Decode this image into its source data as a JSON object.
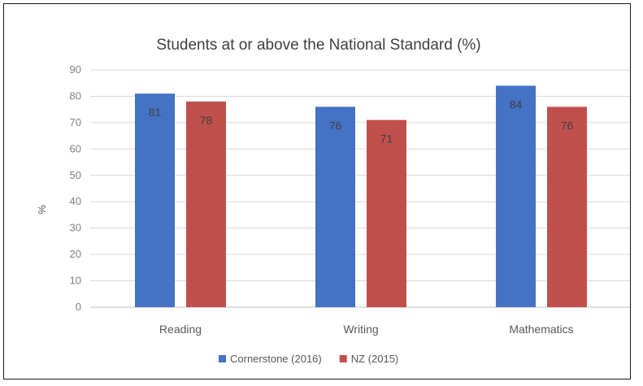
{
  "chart_data": {
    "type": "bar",
    "title": "Students at or above the National Standard (%)",
    "xlabel": "",
    "ylabel": "%",
    "categories": [
      "Reading",
      "Writing",
      "Mathematics"
    ],
    "series": [
      {
        "name": "Cornerstone (2016)",
        "color": "#4472c4",
        "values": [
          81,
          76,
          84
        ]
      },
      {
        "name": "NZ (2015)",
        "color": "#c0504d",
        "values": [
          78,
          71,
          76
        ]
      }
    ],
    "ylim": [
      0,
      90
    ],
    "yticks": [
      0,
      10,
      20,
      30,
      40,
      50,
      60,
      70,
      80,
      90
    ],
    "grid": true,
    "legend": "bottom"
  }
}
